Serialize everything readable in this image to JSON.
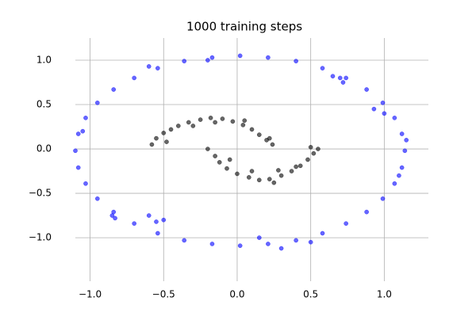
{
  "chart_data": {
    "type": "scatter",
    "title": "1000 training steps",
    "xlim": [
      -1.1,
      1.3
    ],
    "ylim": [
      -1.49,
      1.25
    ],
    "grid": true,
    "xticks": [
      {
        "value": -1.0,
        "label": "−1.0"
      },
      {
        "value": -0.5,
        "label": "−0.5"
      },
      {
        "value": 0.0,
        "label": "0.0"
      },
      {
        "value": 0.5,
        "label": "0.5"
      },
      {
        "value": 1.0,
        "label": "1.0"
      }
    ],
    "yticks": [
      {
        "value": -1.0,
        "label": "−1.0"
      },
      {
        "value": -0.5,
        "label": "−0.5"
      },
      {
        "value": 0.0,
        "label": "0.0"
      },
      {
        "value": 0.5,
        "label": "0.5"
      },
      {
        "value": 1.0,
        "label": "1.0"
      }
    ],
    "series": [
      {
        "color": "#0000ff",
        "x": [
          1.14,
          1.12,
          1.07,
          0.99,
          0.88,
          0.74,
          0.58,
          0.4,
          0.21,
          0.02,
          -0.17,
          -0.36,
          -0.54,
          -0.7,
          -0.84,
          -0.95,
          -1.03,
          -1.08,
          -1.1,
          -1.08,
          -1.03,
          -0.95,
          -0.84,
          -0.7,
          -0.54,
          -0.36,
          -0.17,
          0.02,
          0.21,
          0.4,
          0.58,
          0.74,
          0.88,
          0.99,
          1.07,
          1.12,
          -0.85,
          -0.83,
          -0.6,
          -0.55,
          -0.5,
          0.7,
          0.72,
          0.65,
          1.0,
          0.93,
          1.1,
          1.15,
          -0.2,
          0.5,
          0.3,
          0.15,
          -0.6,
          -1.05
        ],
        "y": [
          -0.02,
          0.17,
          0.35,
          0.52,
          0.67,
          0.8,
          0.91,
          0.99,
          1.03,
          1.05,
          1.03,
          0.99,
          0.91,
          0.8,
          0.67,
          0.52,
          0.35,
          0.17,
          -0.02,
          -0.21,
          -0.39,
          -0.56,
          -0.71,
          -0.84,
          -0.95,
          -1.03,
          -1.07,
          -1.09,
          -1.07,
          -1.03,
          -0.95,
          -0.84,
          -0.71,
          -0.56,
          -0.39,
          -0.21,
          -0.75,
          -0.78,
          -0.75,
          -0.82,
          -0.8,
          0.8,
          0.75,
          0.82,
          0.4,
          0.45,
          -0.3,
          0.1,
          1.0,
          -1.05,
          -1.12,
          -1.0,
          0.93,
          0.2
        ]
      },
      {
        "color": "#000000",
        "x": [
          -0.58,
          -0.55,
          -0.5,
          -0.45,
          -0.4,
          -0.33,
          -0.25,
          -0.18,
          -0.1,
          -0.03,
          0.04,
          0.1,
          0.15,
          0.2,
          0.24,
          0.22,
          -0.48,
          -0.3,
          -0.15,
          0.05,
          -0.2,
          -0.15,
          -0.12,
          -0.07,
          0.0,
          0.08,
          0.15,
          0.22,
          0.3,
          0.37,
          0.43,
          0.48,
          0.52,
          0.55,
          0.5,
          -0.05,
          0.1,
          0.25,
          0.4,
          0.28
        ],
        "y": [
          0.05,
          0.12,
          0.18,
          0.22,
          0.26,
          0.3,
          0.33,
          0.35,
          0.34,
          0.31,
          0.27,
          0.22,
          0.16,
          0.1,
          0.05,
          0.12,
          0.08,
          0.26,
          0.3,
          0.32,
          0.0,
          -0.08,
          -0.15,
          -0.22,
          -0.28,
          -0.32,
          -0.35,
          -0.34,
          -0.3,
          -0.25,
          -0.19,
          -0.12,
          -0.05,
          0.0,
          0.02,
          -0.12,
          -0.25,
          -0.38,
          -0.2,
          -0.24
        ]
      }
    ]
  }
}
